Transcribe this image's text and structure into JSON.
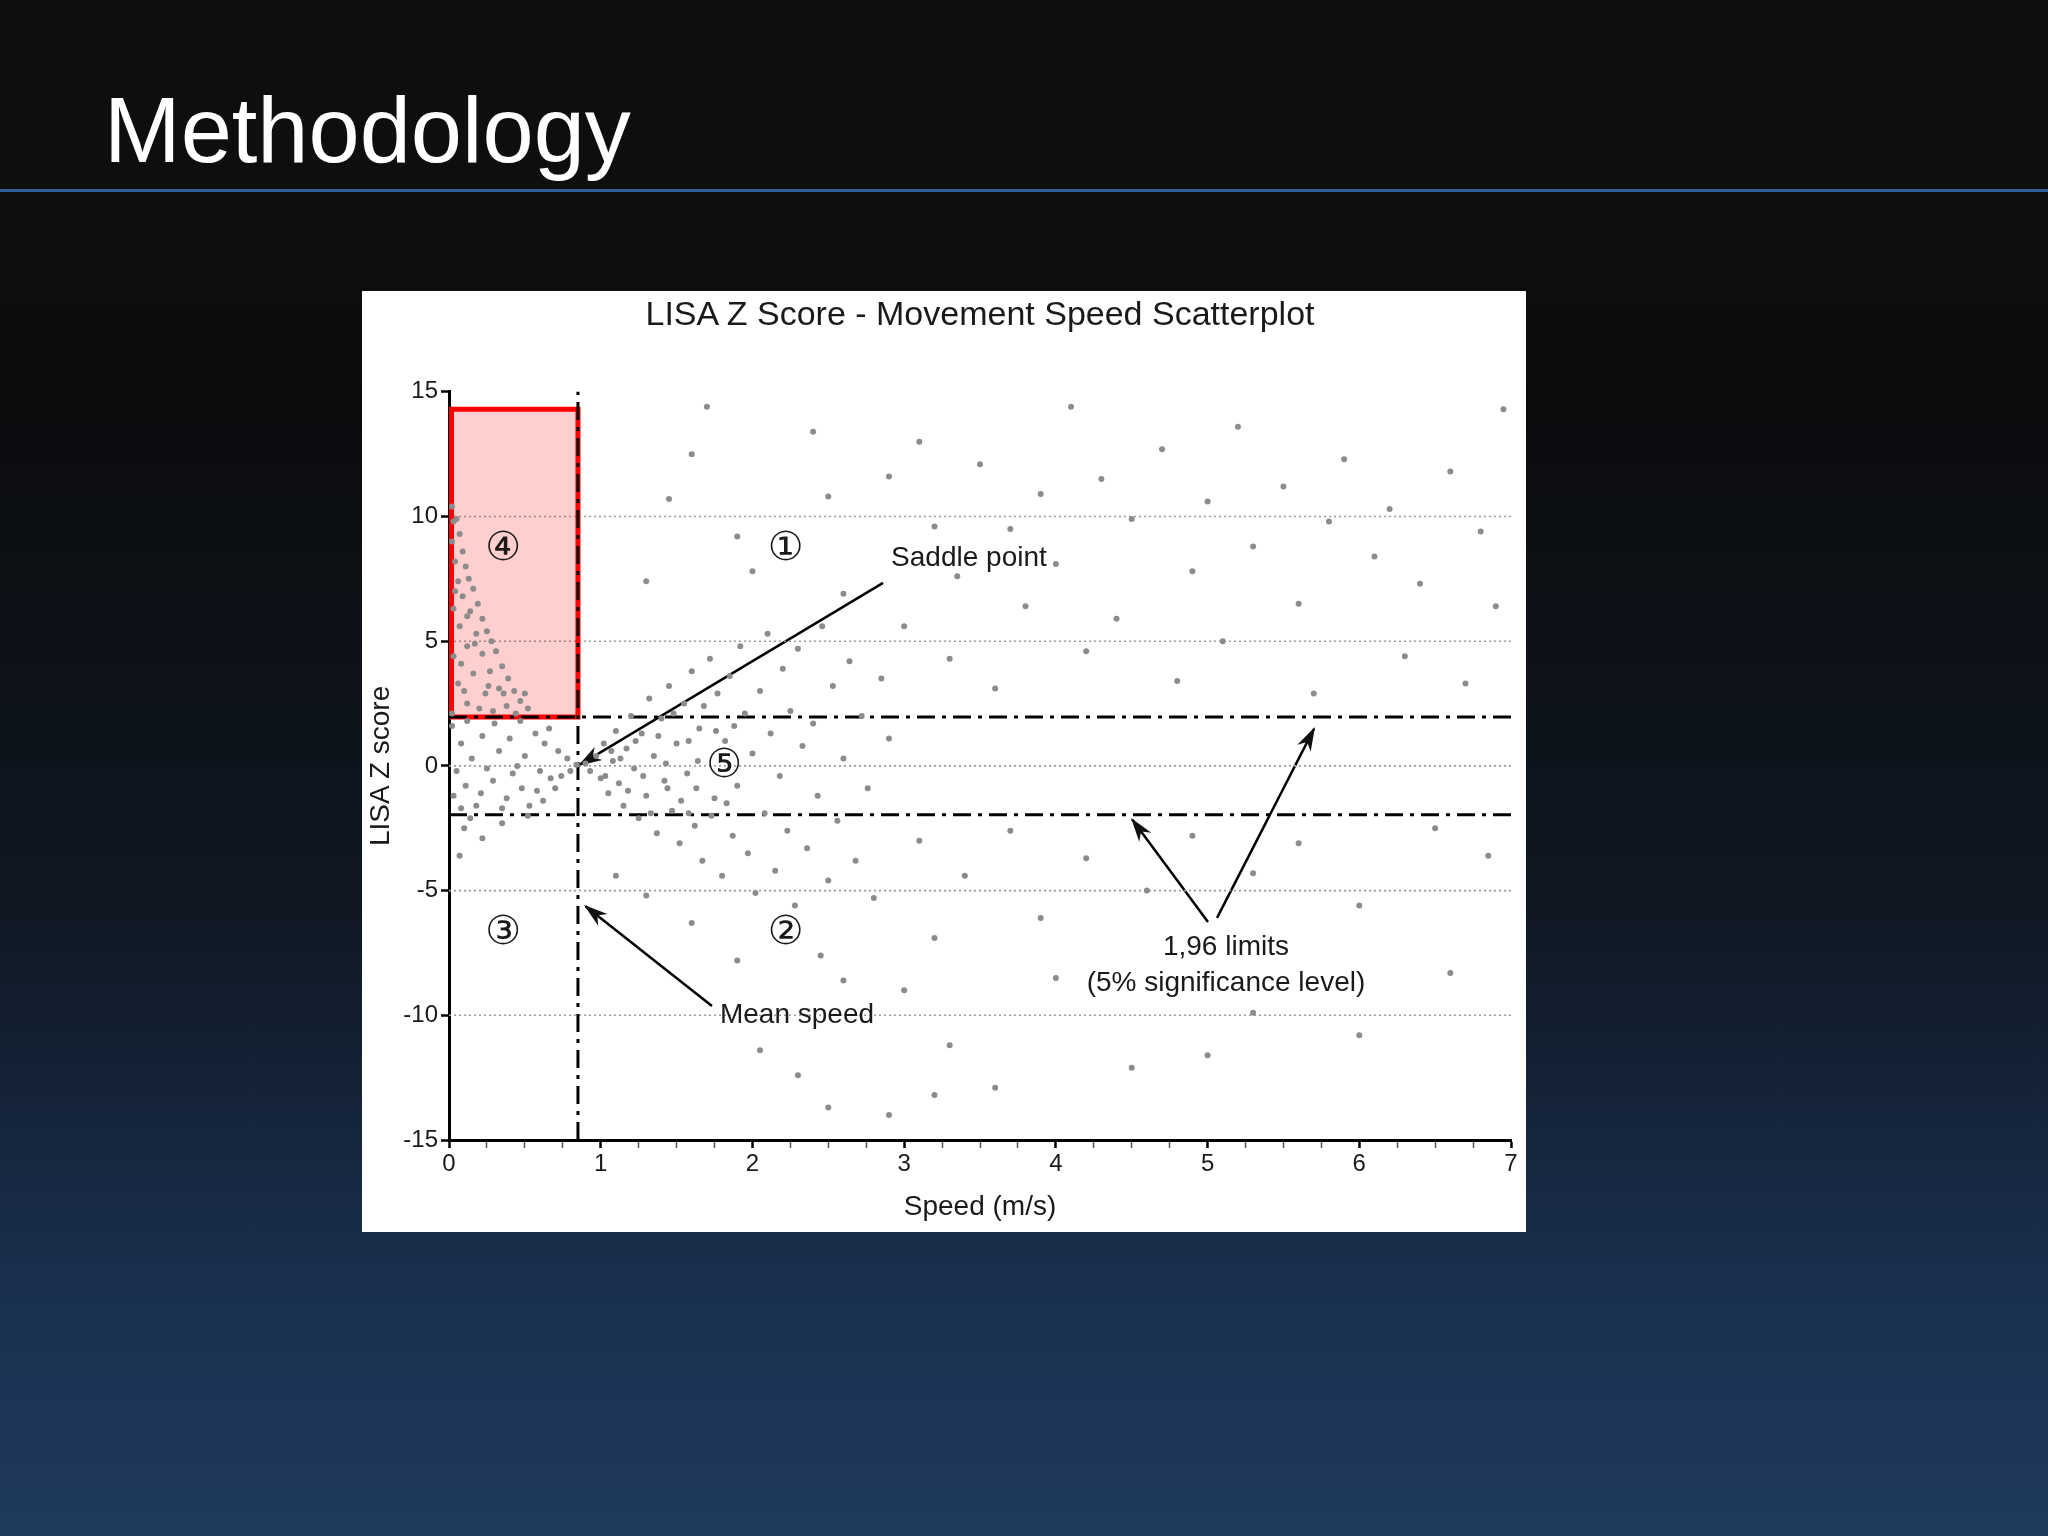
{
  "chart_data": {
    "type": "scatter",
    "title": "Methodology",
    "subtitle": "LISA Z Score - Movement Speed Scatterplot",
    "xlabel": "Speed (m/s)",
    "ylabel": "LISA Z score",
    "x": [
      0.02,
      0.03,
      0.05,
      0.02,
      0.07,
      0.04,
      0.09,
      0.11,
      0.06,
      0.13,
      0.09,
      0.16,
      0.03,
      0.14,
      0.19,
      0.22,
      0.07,
      0.18,
      0.25,
      0.28,
      0.12,
      0.03,
      0.22,
      0.31,
      0.35,
      0.27,
      0.16,
      0.06,
      0.39,
      0.33,
      0.43,
      0.24,
      0.47,
      0.12,
      0.38,
      0.52,
      0.29,
      0.02,
      0.44,
      0.2,
      0.08,
      0.17,
      0.26,
      0.36,
      0.1,
      0.5,
      0.04,
      0.12,
      0.02,
      0.08,
      0.05,
      0.03,
      0.12,
      0.15,
      0.11,
      0.18,
      0.22,
      0.25,
      0.21,
      0.3,
      0.33,
      0.29,
      0.35,
      0.4,
      0.42,
      0.38,
      0.47,
      0.5,
      0.48,
      0.53,
      0.57,
      0.6,
      0.58,
      0.63,
      0.66,
      0.67,
      0.62,
      0.72,
      0.74,
      0.7,
      0.78,
      0.8,
      0.84,
      0.08,
      0.45,
      0.1,
      0.22,
      0.07,
      0.35,
      0.14,
      0.52,
      0.9,
      0.93,
      0.97,
      1.0,
      1.02,
      1.05,
      1.08,
      1.1,
      1.12,
      1.15,
      1.17,
      1.2,
      1.22,
      1.25,
      1.27,
      1.3,
      1.32,
      1.35,
      1.37,
      1.4,
      1.42,
      1.45,
      1.47,
      1.5,
      1.52,
      1.55,
      1.57,
      1.6,
      1.62,
      1.65,
      1.67,
      1.64,
      1.72,
      1.75,
      1.77,
      1.8,
      1.82,
      1.85,
      1.87,
      1.9,
      1.92,
      1.95,
      1.97,
      2.0,
      2.02,
      2.05,
      2.08,
      2.1,
      2.12,
      2.15,
      2.18,
      2.2,
      2.23,
      2.25,
      2.28,
      2.3,
      2.33,
      2.36,
      2.4,
      2.43,
      2.46,
      2.5,
      2.53,
      2.56,
      2.6,
      2.64,
      2.68,
      2.72,
      2.76,
      2.8,
      2.85,
      2.9,
      1.03,
      1.07,
      1.13,
      1.18,
      1.23,
      1.28,
      1.33,
      1.38,
      1.43,
      1.48,
      1.53,
      1.58,
      1.63,
      1.68,
      1.73,
      1.76,
      1.83,
      1.88,
      1.58,
      1.44,
      1.7,
      2.4,
      2.5,
      1.6,
      1.9,
      1.3,
      1.45,
      2.0,
      2.6,
      2.9,
      3.1,
      3.2,
      3.35,
      3.0,
      3.5,
      3.7,
      3.9,
      3.8,
      4.1,
      4.0,
      4.3,
      4.5,
      4.4,
      4.7,
      4.9,
      5.0,
      5.2,
      5.3,
      5.5,
      5.6,
      5.8,
      5.9,
      6.1,
      6.2,
      6.4,
      6.6,
      6.8,
      6.95,
      6.9,
      3.3,
      3.6,
      4.2,
      4.8,
      5.1,
      5.7,
      6.3,
      6.7,
      3.1,
      3.4,
      3.7,
      3.9,
      4.2,
      4.6,
      4.9,
      5.3,
      5.6,
      6.0,
      6.5,
      6.85,
      2.45,
      2.6,
      2.05,
      2.3,
      2.5,
      3.0,
      3.3,
      3.2,
      3.6,
      4.0,
      4.5,
      5.0,
      5.3,
      6.0,
      6.6,
      1.9,
      1.6,
      1.1,
      1.3,
      2.9,
      3.2
    ],
    "values": [
      10.4,
      9.8,
      9.9,
      9.0,
      9.3,
      8.2,
      8.6,
      8.0,
      7.4,
      7.5,
      6.8,
      7.1,
      6.3,
      6.2,
      6.5,
      5.9,
      5.6,
      5.3,
      5.4,
      5.0,
      4.8,
      4.4,
      4.5,
      4.6,
      4.0,
      3.8,
      3.7,
      3.3,
      3.5,
      3.1,
      3.0,
      2.9,
      2.6,
      2.5,
      2.4,
      2.3,
      2.2,
      2.1,
      2.1,
      2.3,
      4.1,
      4.9,
      3.2,
      2.9,
      3.0,
      2.9,
      7.0,
      6.0,
      1.6,
      0.9,
      -0.2,
      -1.2,
      1.8,
      0.3,
      -0.8,
      -1.6,
      1.2,
      -0.1,
      -1.1,
      1.7,
      0.6,
      -0.6,
      -1.7,
      1.1,
      -0.3,
      -1.3,
      1.8,
      0.4,
      -0.9,
      -1.6,
      1.3,
      -0.2,
      -1.0,
      0.9,
      1.5,
      -0.5,
      -1.4,
      0.6,
      -0.4,
      -0.9,
      0.3,
      -0.2,
      0.05,
      -1.7,
      0.0,
      -2.5,
      -2.9,
      -3.6,
      -2.3,
      -2.1,
      -2.0,
      0.1,
      -0.2,
      0.4,
      -0.5,
      0.9,
      -1.1,
      0.2,
      1.4,
      -0.7,
      -1.6,
      0.7,
      2.0,
      -0.1,
      -2.1,
      1.3,
      -1.2,
      2.7,
      0.4,
      -2.7,
      1.9,
      -0.6,
      3.2,
      -1.8,
      0.9,
      -3.1,
      2.5,
      -0.3,
      3.8,
      -2.4,
      1.5,
      -3.8,
      0.2,
      4.3,
      -1.3,
      2.9,
      -4.4,
      1.0,
      3.6,
      -2.8,
      -0.8,
      4.8,
      2.1,
      -3.5,
      0.5,
      -5.1,
      3.0,
      -1.9,
      5.3,
      1.3,
      -4.2,
      -0.4,
      3.9,
      -2.6,
      2.2,
      -5.6,
      4.7,
      0.8,
      -3.3,
      1.7,
      -1.2,
      5.6,
      -4.6,
      3.2,
      -2.2,
      0.3,
      4.2,
      -3.8,
      2.0,
      -0.9,
      -5.3,
      3.5,
      1.1,
      -0.4,
      0.6,
      0.3,
      -1.0,
      1.0,
      -0.4,
      -1.9,
      1.2,
      0.1,
      2.1,
      -1.4,
      1.0,
      -0.9,
      2.4,
      -2.0,
      1.4,
      -1.5,
      1.6,
      -1.9,
      -0.9,
      14.4,
      13.4,
      10.8,
      12.5,
      9.2,
      7.4,
      10.7,
      7.8,
      6.9,
      11.6,
      13.0,
      9.6,
      7.6,
      5.6,
      12.1,
      9.5,
      10.9,
      6.4,
      14.4,
      8.1,
      11.5,
      9.9,
      5.9,
      12.7,
      7.8,
      10.6,
      13.6,
      8.8,
      11.2,
      6.5,
      9.8,
      12.3,
      8.4,
      10.3,
      7.3,
      11.8,
      9.4,
      14.3,
      6.4,
      4.3,
      3.1,
      4.6,
      3.4,
      5.0,
      2.9,
      4.4,
      3.3,
      -3.0,
      -4.4,
      -2.6,
      -6.1,
      -3.7,
      -5.0,
      -2.8,
      -4.3,
      -3.1,
      -5.6,
      -2.5,
      -3.6,
      -7.6,
      -8.6,
      -11.4,
      -12.4,
      -13.7,
      -9.0,
      -11.2,
      -6.9,
      -12.9,
      -8.5,
      -12.1,
      -11.6,
      -9.9,
      -10.8,
      -8.3,
      -7.8,
      -6.3,
      -4.4,
      -5.2,
      -14.0,
      -13.2
    ],
    "color": "#8c8c8c",
    "marker": "circle",
    "xlim": [
      0,
      7
    ],
    "xticks": [
      0,
      {
        "value": 0.25,
        "label": null
      },
      {
        "value": 0.5,
        "label": null
      },
      {
        "value": 0.75,
        "label": null
      },
      1,
      {
        "value": 1.25,
        "label": null
      },
      {
        "value": 1.5,
        "label": null
      },
      {
        "value": 1.75,
        "label": null
      },
      2,
      {
        "value": 2.25,
        "label": null
      },
      {
        "value": 2.5,
        "label": null
      },
      {
        "value": 2.75,
        "label": null
      },
      3,
      {
        "value": 3.25,
        "label": null
      },
      {
        "value": 3.5,
        "label": null
      },
      {
        "value": 3.75,
        "label": null
      },
      4,
      {
        "value": 4.25,
        "label": null
      },
      {
        "value": 4.5,
        "label": null
      },
      {
        "value": 4.75,
        "label": null
      },
      5,
      {
        "value": 5.25,
        "label": null
      },
      {
        "value": 5.5,
        "label": null
      },
      {
        "value": 5.75,
        "label": null
      },
      6,
      {
        "value": 6.25,
        "label": null
      },
      {
        "value": 6.5,
        "label": null
      },
      {
        "value": 6.75,
        "label": null
      },
      7
    ],
    "ylim": [
      -15,
      15
    ],
    "yticks": [
      -15,
      -10,
      -5,
      0,
      5,
      10,
      15
    ],
    "grid": "y",
    "ref_lines": [
      {
        "axis": "y",
        "value": 1.96,
        "color": "#000000",
        "line_style": "dashdot"
      },
      {
        "axis": "y",
        "value": -1.96,
        "color": "#000000",
        "line_style": "dashdot"
      },
      {
        "axis": "x",
        "value": 0.85,
        "color": "#000000",
        "line_style": "dashdot"
      }
    ],
    "bands": [
      {
        "axis": "y",
        "from": 1.96,
        "to": 14.3,
        "color": "#ff0000"
      }
    ],
    "annotations": [
      {
        "text": "Saddle point",
        "x": 0.85,
        "y": 0
      },
      "Mean speed",
      "1,96 limits\n(5% significance level)",
      "①",
      "②",
      "③",
      "④",
      "⑤"
    ]
  }
}
